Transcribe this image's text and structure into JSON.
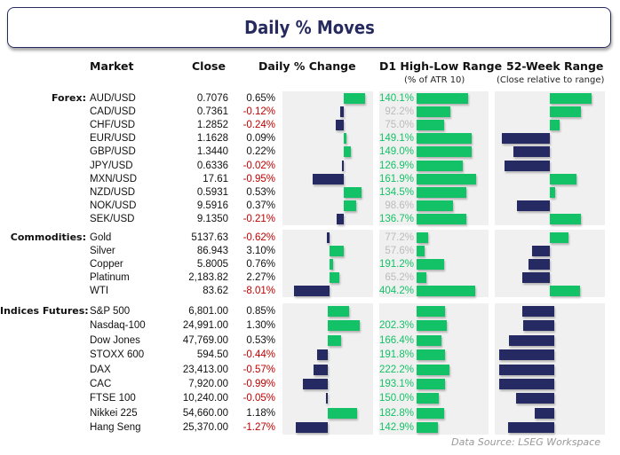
{
  "title": "Daily % Moves",
  "headers": {
    "market": "Market",
    "close": "Close",
    "daily": "Daily % Change",
    "d1": "D1 High-Low Range",
    "d1_sub": "(% of ATR 10)",
    "w52": "52-Week Range",
    "w52_sub": "(Close relative to range)"
  },
  "colors": {
    "positive": "#13c266",
    "negative": "#262a62",
    "negative_text": "#c00000",
    "d1_high_text": "#13c266",
    "d1_low_text": "#bbbbbb",
    "title": "#262a5e"
  },
  "sections": [
    {
      "label": "Forex:",
      "rows": [
        {
          "market": "AUD/USD",
          "close": "0.7076",
          "change": 0.65,
          "change_label": "0.65%",
          "d1": 140.1,
          "d1_label": "140.1%",
          "w52": 0.76
        },
        {
          "market": "CAD/USD",
          "close": "0.7361",
          "change": -0.12,
          "change_label": "-0.12%",
          "d1": 92.2,
          "d1_label": "92.2%",
          "w52": 0.56
        },
        {
          "market": "CHF/USD",
          "close": "1.2852",
          "change": -0.24,
          "change_label": "-0.24%",
          "d1": 75.0,
          "d1_label": "75.0%",
          "w52": 0.18
        },
        {
          "market": "EUR/USD",
          "close": "1.1628",
          "change": 0.09,
          "change_label": "0.09%",
          "d1": 149.1,
          "d1_label": "149.1%",
          "w52": -0.87
        },
        {
          "market": "GBP/USD",
          "close": "1.3440",
          "change": 0.22,
          "change_label": "0.22%",
          "d1": 149.0,
          "d1_label": "149.0%",
          "w52": -0.66
        },
        {
          "market": "JPY/USD",
          "close": "0.6336",
          "change": -0.02,
          "change_label": "-0.02%",
          "d1": 126.9,
          "d1_label": "126.9%",
          "w52": -0.82
        },
        {
          "market": "MXN/USD",
          "close": "17.61",
          "change": -0.95,
          "change_label": "-0.95%",
          "d1": 161.9,
          "d1_label": "161.9%",
          "w52": 0.48
        },
        {
          "market": "NZD/USD",
          "close": "0.5931",
          "change": 0.53,
          "change_label": "0.53%",
          "d1": 134.5,
          "d1_label": "134.5%",
          "w52": 0.1
        },
        {
          "market": "NOK/USD",
          "close": "9.5916",
          "change": 0.37,
          "change_label": "0.37%",
          "d1": 98.6,
          "d1_label": "98.6%",
          "w52": -0.6
        },
        {
          "market": "SEK/USD",
          "close": "9.1350",
          "change": -0.21,
          "change_label": "-0.21%",
          "d1": 136.7,
          "d1_label": "136.7%",
          "w52": 0.56
        }
      ]
    },
    {
      "label": "Commodities:",
      "rows": [
        {
          "market": "Gold",
          "close": "5137.63",
          "change": -0.62,
          "change_label": "-0.62%",
          "d1": 77.2,
          "d1_label": "77.2%",
          "w52": 0.34
        },
        {
          "market": "Silver",
          "close": "86.943",
          "change": 3.1,
          "change_label": "3.10%",
          "d1": 57.6,
          "d1_label": "57.6%",
          "w52": -0.32
        },
        {
          "market": "Copper",
          "close": "5.8005",
          "change": 0.76,
          "change_label": "0.76%",
          "d1": 191.2,
          "d1_label": "191.2%",
          "w52": -0.39
        },
        {
          "market": "Platinum",
          "close": "2,183.82",
          "change": 2.27,
          "change_label": "2.27%",
          "d1": 65.2,
          "d1_label": "65.2%",
          "w52": -0.5
        },
        {
          "market": "WTI",
          "close": "83.62",
          "change": -8.01,
          "change_label": "-8.01%",
          "d1": 404.2,
          "d1_label": "404.2%",
          "w52": 0.55
        }
      ]
    },
    {
      "label": "Indices Futures:",
      "rows": [
        {
          "market": "S&P 500",
          "close": "6,801.00",
          "change": 0.85,
          "change_label": "0.85%",
          "d1": 192.0,
          "d1_label": "",
          "w52": -0.58
        },
        {
          "market": "Nasdaq-100",
          "close": "24,991.00",
          "change": 1.3,
          "change_label": "1.30%",
          "d1": 202.3,
          "d1_label": "202.3%",
          "w52": -0.56
        },
        {
          "market": "Dow Jones",
          "close": "47,769.00",
          "change": 0.53,
          "change_label": "0.53%",
          "d1": 166.4,
          "d1_label": "166.4%",
          "w52": -0.82
        },
        {
          "market": "STOXX 600",
          "close": "594.50",
          "change": -0.44,
          "change_label": "-0.44%",
          "d1": 191.8,
          "d1_label": "191.8%",
          "w52": -1.0
        },
        {
          "market": "DAX",
          "close": "23,413.00",
          "change": -0.57,
          "change_label": "-0.57%",
          "d1": 222.2,
          "d1_label": "222.2%",
          "w52": -1.0
        },
        {
          "market": "CAC",
          "close": "7,920.00",
          "change": -0.99,
          "change_label": "-0.99%",
          "d1": 193.1,
          "d1_label": "193.1%",
          "w52": -1.0
        },
        {
          "market": "FTSE 100",
          "close": "10,240.00",
          "change": -0.05,
          "change_label": "-0.05%",
          "d1": 150.0,
          "d1_label": "150.0%",
          "w52": -0.69
        },
        {
          "market": "Nikkei 225",
          "close": "54,660.00",
          "change": 1.18,
          "change_label": "1.18%",
          "d1": 182.8,
          "d1_label": "182.8%",
          "w52": -0.35
        },
        {
          "market": "Hang Seng",
          "close": "25,370.00",
          "change": -1.27,
          "change_label": "-1.27%",
          "d1": 142.9,
          "d1_label": "142.9%",
          "w52": -0.84
        }
      ]
    }
  ],
  "source": "Data Source: LSEG Workspace"
}
